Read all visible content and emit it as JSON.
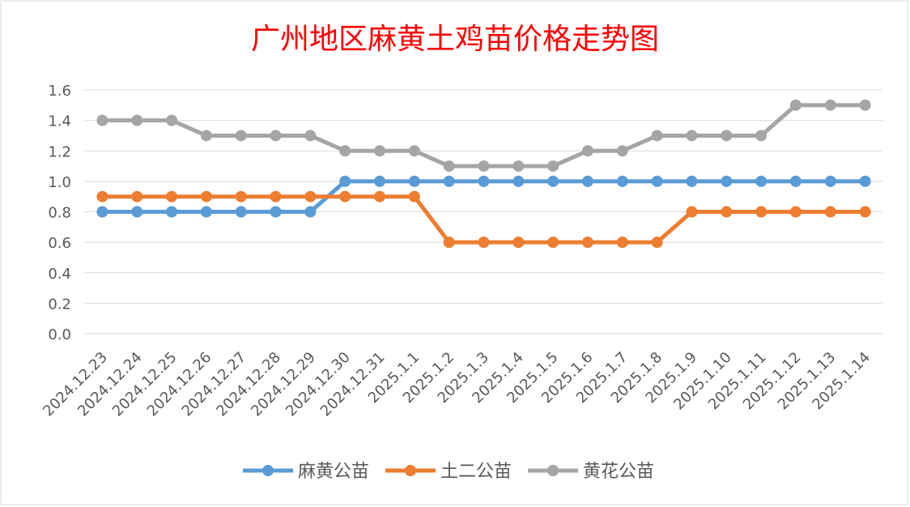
{
  "chart_data": {
    "type": "line",
    "title": "广州地区麻黄土鸡苗价格走势图",
    "x": [
      "2024.12.23",
      "2024.12.24",
      "2024.12.25",
      "2024.12.26",
      "2024.12.27",
      "2024.12.28",
      "2024.12.29",
      "2024.12.30",
      "2024.12.31",
      "2025.1.1",
      "2025.1.2",
      "2025.1.3",
      "2025.1.4",
      "2025.1.5",
      "2025.1.6",
      "2025.1.7",
      "2025.1.8",
      "2025.1.9",
      "2025.1.10",
      "2025.1.11",
      "2025.1.12",
      "2025.1.13",
      "2025.1.14"
    ],
    "series": [
      {
        "name": "麻黄公苗",
        "color": "#5b9bd5",
        "values": [
          0.8,
          0.8,
          0.8,
          0.8,
          0.8,
          0.8,
          0.8,
          1.0,
          1.0,
          1.0,
          1.0,
          1.0,
          1.0,
          1.0,
          1.0,
          1.0,
          1.0,
          1.0,
          1.0,
          1.0,
          1.0,
          1.0,
          1.0
        ]
      },
      {
        "name": "土二公苗",
        "color": "#ed7d31",
        "values": [
          0.9,
          0.9,
          0.9,
          0.9,
          0.9,
          0.9,
          0.9,
          0.9,
          0.9,
          0.9,
          0.6,
          0.6,
          0.6,
          0.6,
          0.6,
          0.6,
          0.6,
          0.8,
          0.8,
          0.8,
          0.8,
          0.8,
          0.8
        ]
      },
      {
        "name": "黄花公苗",
        "color": "#a5a5a5",
        "values": [
          1.4,
          1.4,
          1.4,
          1.3,
          1.3,
          1.3,
          1.3,
          1.2,
          1.2,
          1.2,
          1.1,
          1.1,
          1.1,
          1.1,
          1.2,
          1.2,
          1.3,
          1.3,
          1.3,
          1.3,
          1.5,
          1.5,
          1.5
        ]
      }
    ],
    "ylim": [
      0,
      1.6
    ],
    "yticks": [
      "0.0",
      "0.2",
      "0.4",
      "0.6",
      "0.8",
      "1.0",
      "1.2",
      "1.4",
      "1.6"
    ],
    "grid": true,
    "legend": "bottom",
    "title_color": "#ff0000"
  }
}
